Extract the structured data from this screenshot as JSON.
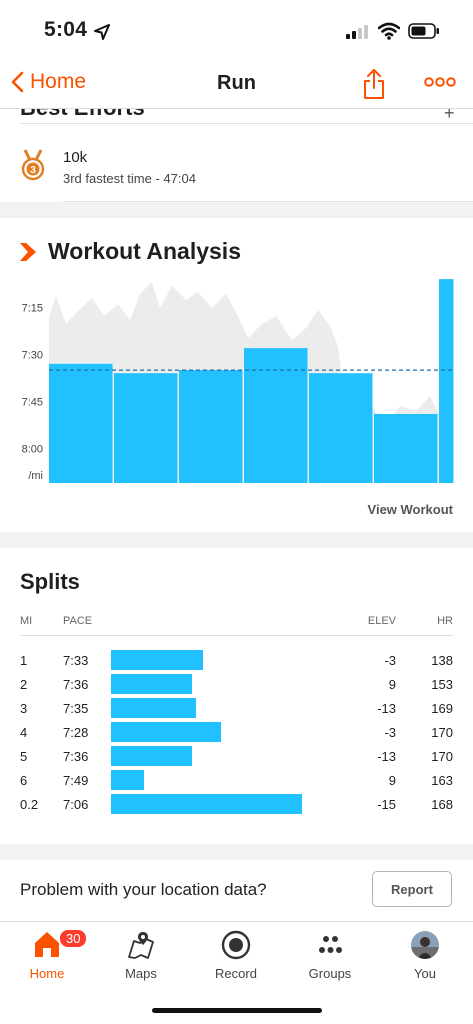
{
  "status": {
    "time": "5:04"
  },
  "nav": {
    "back_label": "Home",
    "title": "Run"
  },
  "best_efforts": {
    "title": "Best Efforts",
    "item_name": "10k",
    "item_detail": "3rd fastest time - 47:04"
  },
  "workout_analysis": {
    "title": "Workout Analysis",
    "view_label": "View Workout"
  },
  "chart_data": {
    "type": "bar",
    "title": "Workout Analysis",
    "ylabel": "/mi",
    "y_ticks": [
      "7:15",
      "7:30",
      "7:45",
      "8:00",
      "/mi"
    ],
    "y_reversed": true,
    "ylim_seconds": [
      425,
      491
    ],
    "average_pace": "7:35",
    "categories": [
      "1",
      "2",
      "3",
      "4",
      "5",
      "6",
      "0.2"
    ],
    "values": [
      "7:33",
      "7:36",
      "7:35",
      "7:28",
      "7:36",
      "7:49",
      "7:06"
    ],
    "colors": {
      "bar": "#21c0ff",
      "background_area": "#ececec",
      "average_line": "#1f6fa8"
    }
  },
  "splits": {
    "title": "Splits",
    "headers": {
      "mi": "MI",
      "pace": "PACE",
      "elev": "ELEV",
      "hr": "HR"
    },
    "rows": [
      {
        "mi": "1",
        "pace": "7:33",
        "elev": "-3",
        "hr": "138"
      },
      {
        "mi": "2",
        "pace": "7:36",
        "elev": "9",
        "hr": "153"
      },
      {
        "mi": "3",
        "pace": "7:35",
        "elev": "-13",
        "hr": "169"
      },
      {
        "mi": "4",
        "pace": "7:28",
        "elev": "-3",
        "hr": "170"
      },
      {
        "mi": "5",
        "pace": "7:36",
        "elev": "-13",
        "hr": "170"
      },
      {
        "mi": "6",
        "pace": "7:49",
        "elev": "9",
        "hr": "163"
      },
      {
        "mi": "0.2",
        "pace": "7:06",
        "elev": "-15",
        "hr": "168"
      }
    ]
  },
  "problem": {
    "text": "Problem with your location data?",
    "button": "Report"
  },
  "tabs": [
    {
      "label": "Home",
      "icon": "home-icon",
      "badge": "30"
    },
    {
      "label": "Maps",
      "icon": "maps-icon"
    },
    {
      "label": "Record",
      "icon": "record-icon"
    },
    {
      "label": "Groups",
      "icon": "groups-icon"
    },
    {
      "label": "You",
      "icon": "avatar-icon"
    }
  ],
  "colors": {
    "accent": "#fc5200",
    "split_bar": "#21c0ff"
  }
}
